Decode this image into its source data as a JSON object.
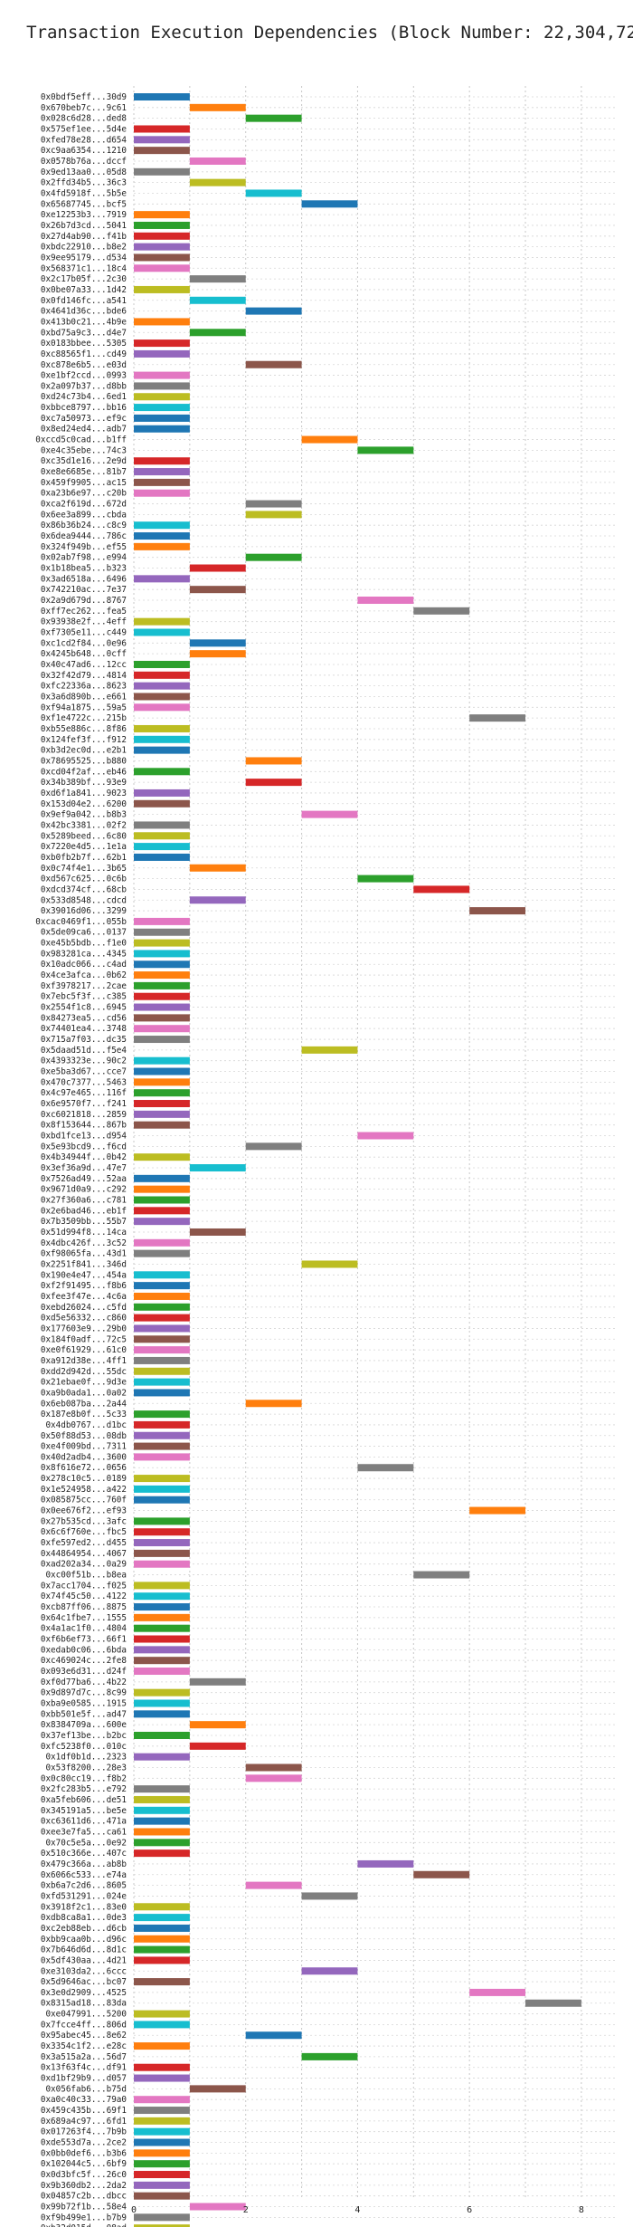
{
  "chart_data": {
    "type": "gantt",
    "title": "Transaction Execution Dependencies (Block Number: 22,304,722)",
    "xlabel": "",
    "ylabel": "",
    "xlim": [
      0,
      8.6
    ],
    "xticks": [
      0,
      2,
      4,
      6,
      8
    ],
    "grid": true,
    "legend": "none",
    "palette": [
      "#1f77b4",
      "#ff7f0e",
      "#2ca02c",
      "#d62728",
      "#9467bd",
      "#8c564b",
      "#e377c2",
      "#7f7f7f",
      "#bcbd22",
      "#17becf"
    ],
    "rows": [
      {
        "label": "0x0bdf5eff...30d9",
        "start": 0,
        "c": 0
      },
      {
        "label": "0x670beb7c...9c61",
        "start": 1,
        "c": 1
      },
      {
        "label": "0x028c6d28...ded8",
        "start": 2,
        "c": 2
      },
      {
        "label": "0x575ef1ee...5d4e",
        "start": 0,
        "c": 3
      },
      {
        "label": "0xfed78e28...d654",
        "start": 0,
        "c": 4
      },
      {
        "label": "0xc9aa6354...1210",
        "start": 0,
        "c": 5
      },
      {
        "label": "0x0578b76a...dccf",
        "start": 1,
        "c": 6
      },
      {
        "label": "0x9ed13aa0...05d8",
        "start": 0,
        "c": 7
      },
      {
        "label": "0x2ffd34b5...36c3",
        "start": 1,
        "c": 8
      },
      {
        "label": "0x4fd5918f...5b5e",
        "start": 2,
        "c": 9
      },
      {
        "label": "0x65687745...bcf5",
        "start": 3,
        "c": 0
      },
      {
        "label": "0xe12253b3...7919",
        "start": 0,
        "c": 1
      },
      {
        "label": "0x26b7d3cd...5041",
        "start": 0,
        "c": 2
      },
      {
        "label": "0x27d4ab90...f41b",
        "start": 0,
        "c": 3
      },
      {
        "label": "0xbdc22910...b8e2",
        "start": 0,
        "c": 4
      },
      {
        "label": "0x9ee95179...d534",
        "start": 0,
        "c": 5
      },
      {
        "label": "0x568371c1...18c4",
        "start": 0,
        "c": 6
      },
      {
        "label": "0x2c17b05f...2c30",
        "start": 1,
        "c": 7
      },
      {
        "label": "0x0be07a33...1d42",
        "start": 0,
        "c": 8
      },
      {
        "label": "0x0fd146fc...a541",
        "start": 1,
        "c": 9
      },
      {
        "label": "0x4641d36c...bde6",
        "start": 2,
        "c": 0
      },
      {
        "label": "0x413b0c21...4b9e",
        "start": 0,
        "c": 1
      },
      {
        "label": "0xbd75a9c3...d4e7",
        "start": 1,
        "c": 2
      },
      {
        "label": "0x0183bbee...5305",
        "start": 0,
        "c": 3
      },
      {
        "label": "0xc88565f1...cd49",
        "start": 0,
        "c": 4
      },
      {
        "label": "0xc878e6b5...e03d",
        "start": 2,
        "c": 5
      },
      {
        "label": "0xe1bf2ccd...0993",
        "start": 0,
        "c": 6
      },
      {
        "label": "0x2a097b37...d8bb",
        "start": 0,
        "c": 7
      },
      {
        "label": "0xd24c73b4...6ed1",
        "start": 0,
        "c": 8
      },
      {
        "label": "0xbbce8797...bb16",
        "start": 0,
        "c": 9
      },
      {
        "label": "0xc7a50973...ef9c",
        "start": 0,
        "c": 0
      },
      {
        "label": "0x8ed24ed4...adb7",
        "start": 0,
        "c": 0
      },
      {
        "label": "0xccd5c0cad...b1ff",
        "start": 3,
        "c": 1
      },
      {
        "label": "0xe4c35ebe...74c3",
        "start": 4,
        "c": 2
      },
      {
        "label": "0xc35d1e16...2e9d",
        "start": 0,
        "c": 3
      },
      {
        "label": "0xe8e6685e...81b7",
        "start": 0,
        "c": 4
      },
      {
        "label": "0x459f9905...ac15",
        "start": 0,
        "c": 5
      },
      {
        "label": "0xa23b6e97...c20b",
        "start": 0,
        "c": 6
      },
      {
        "label": "0xca2f619d...672d",
        "start": 2,
        "c": 7
      },
      {
        "label": "0x6ee3a899...cbda",
        "start": 2,
        "c": 8
      },
      {
        "label": "0x86b36b24...c8c9",
        "start": 0,
        "c": 9
      },
      {
        "label": "0x6dea9444...786c",
        "start": 0,
        "c": 0
      },
      {
        "label": "0x324f949b...ef55",
        "start": 0,
        "c": 1
      },
      {
        "label": "0x02ab7f98...e994",
        "start": 2,
        "c": 2
      },
      {
        "label": "0x1b18bea5...b323",
        "start": 1,
        "c": 3
      },
      {
        "label": "0x3ad6518a...6496",
        "start": 0,
        "c": 4
      },
      {
        "label": "0x742210ac...7e37",
        "start": 1,
        "c": 5
      },
      {
        "label": "0x2a9d679d...8767",
        "start": 4,
        "c": 6
      },
      {
        "label": "0xff7ec262...fea5",
        "start": 5,
        "c": 7
      },
      {
        "label": "0x93938e2f...4eff",
        "start": 0,
        "c": 8
      },
      {
        "label": "0xf7305e11...c449",
        "start": 0,
        "c": 9
      },
      {
        "label": "0xc1cd2f84...0e96",
        "start": 1,
        "c": 0
      },
      {
        "label": "0x4245b648...0cff",
        "start": 1,
        "c": 1
      },
      {
        "label": "0x40c47ad6...12cc",
        "start": 0,
        "c": 2
      },
      {
        "label": "0x32f42d79...4814",
        "start": 0,
        "c": 3
      },
      {
        "label": "0xfc22336a...8623",
        "start": 0,
        "c": 4
      },
      {
        "label": "0x3a6d890b...e661",
        "start": 0,
        "c": 5
      },
      {
        "label": "0xf94a1875...59a5",
        "start": 0,
        "c": 6
      },
      {
        "label": "0xf1e4722c...215b",
        "start": 6,
        "c": 7
      },
      {
        "label": "0xb55e886c...8f86",
        "start": 0,
        "c": 8
      },
      {
        "label": "0x124fef3f...f912",
        "start": 0,
        "c": 9
      },
      {
        "label": "0xb3d2ec0d...e2b1",
        "start": 0,
        "c": 0
      },
      {
        "label": "0x78695525...b880",
        "start": 2,
        "c": 1
      },
      {
        "label": "0xcd04f2af...eb46",
        "start": 0,
        "c": 2
      },
      {
        "label": "0x34b389bf...93e9",
        "start": 2,
        "c": 3
      },
      {
        "label": "0xd6f1a841...9023",
        "start": 0,
        "c": 4
      },
      {
        "label": "0x153d04e2...6200",
        "start": 0,
        "c": 5
      },
      {
        "label": "0x9ef9a042...b8b3",
        "start": 3,
        "c": 6
      },
      {
        "label": "0x42bc3381...02f2",
        "start": 0,
        "c": 7
      },
      {
        "label": "0x5289beed...6c80",
        "start": 0,
        "c": 8
      },
      {
        "label": "0x7220e4d5...1e1a",
        "start": 0,
        "c": 9
      },
      {
        "label": "0xb0fb2b7f...62b1",
        "start": 0,
        "c": 0
      },
      {
        "label": "0x0c74f4e1...3b65",
        "start": 1,
        "c": 1
      },
      {
        "label": "0xd567c625...0c6b",
        "start": 4,
        "c": 2
      },
      {
        "label": "0xdcd374cf...68cb",
        "start": 5,
        "c": 3
      },
      {
        "label": "0x533d8548...cdcd",
        "start": 1,
        "c": 4
      },
      {
        "label": "0x39016d06...3299",
        "start": 6,
        "c": 5
      },
      {
        "label": "0xcac0469f1...055b",
        "start": 0,
        "c": 6
      },
      {
        "label": "0x5de09ca6...0137",
        "start": 0,
        "c": 7
      },
      {
        "label": "0xe45b5bdb...f1e0",
        "start": 0,
        "c": 8
      },
      {
        "label": "0x983281ca...4345",
        "start": 0,
        "c": 9
      },
      {
        "label": "0x10adc066...c4ad",
        "start": 0,
        "c": 0
      },
      {
        "label": "0x4ce3afca...0b62",
        "start": 0,
        "c": 1
      },
      {
        "label": "0xf3978217...2cae",
        "start": 0,
        "c": 2
      },
      {
        "label": "0x7ebc5f3f...c385",
        "start": 0,
        "c": 3
      },
      {
        "label": "0x2554f1c8...6945",
        "start": 0,
        "c": 4
      },
      {
        "label": "0x84273ea5...cd56",
        "start": 0,
        "c": 5
      },
      {
        "label": "0x74401ea4...3748",
        "start": 0,
        "c": 6
      },
      {
        "label": "0x715a7f03...dc35",
        "start": 0,
        "c": 7
      },
      {
        "label": "0x5daad51d...f5e4",
        "start": 3,
        "c": 8
      },
      {
        "label": "0x4393323e...90c2",
        "start": 0,
        "c": 9
      },
      {
        "label": "0xe5ba3d67...cce7",
        "start": 0,
        "c": 0
      },
      {
        "label": "0x470c7377...5463",
        "start": 0,
        "c": 1
      },
      {
        "label": "0x4c97e465...116f",
        "start": 0,
        "c": 2
      },
      {
        "label": "0x6e9570f7...f241",
        "start": 0,
        "c": 3
      },
      {
        "label": "0xc6021818...2859",
        "start": 0,
        "c": 4
      },
      {
        "label": "0x8f153644...867b",
        "start": 0,
        "c": 5
      },
      {
        "label": "0xbd1fce13...d954",
        "start": 4,
        "c": 6
      },
      {
        "label": "0x5e93bcd9...f6cd",
        "start": 2,
        "c": 7
      },
      {
        "label": "0x4b34944f...0b42",
        "start": 0,
        "c": 8
      },
      {
        "label": "0x3ef36a9d...47e7",
        "start": 1,
        "c": 9
      },
      {
        "label": "0x7526ad49...52aa",
        "start": 0,
        "c": 0
      },
      {
        "label": "0x9671d0a9...c292",
        "start": 0,
        "c": 1
      },
      {
        "label": "0x27f360a6...c781",
        "start": 0,
        "c": 2
      },
      {
        "label": "0x2e6bad46...eb1f",
        "start": 0,
        "c": 3
      },
      {
        "label": "0x7b3509bb...55b7",
        "start": 0,
        "c": 4
      },
      {
        "label": "0x51d994f8...14ca",
        "start": 1,
        "c": 5
      },
      {
        "label": "0x4dbc426f...3c52",
        "start": 0,
        "c": 6
      },
      {
        "label": "0xf98065fa...43d1",
        "start": 0,
        "c": 7
      },
      {
        "label": "0x2251f841...346d",
        "start": 3,
        "c": 8
      },
      {
        "label": "0x190e4e47...454a",
        "start": 0,
        "c": 9
      },
      {
        "label": "0xf2f91495...f8b6",
        "start": 0,
        "c": 0
      },
      {
        "label": "0xfee3f47e...4c6a",
        "start": 0,
        "c": 1
      },
      {
        "label": "0xebd26024...c5fd",
        "start": 0,
        "c": 2
      },
      {
        "label": "0xd5e56332...c860",
        "start": 0,
        "c": 3
      },
      {
        "label": "0x177603e9...29b0",
        "start": 0,
        "c": 4
      },
      {
        "label": "0x184f0adf...72c5",
        "start": 0,
        "c": 5
      },
      {
        "label": "0xe0f61929...61c0",
        "start": 0,
        "c": 6
      },
      {
        "label": "0xa912d38e...4ff1",
        "start": 0,
        "c": 7
      },
      {
        "label": "0xdd2d942d...55dc",
        "start": 0,
        "c": 8
      },
      {
        "label": "0x21ebae0f...9d3e",
        "start": 0,
        "c": 9
      },
      {
        "label": "0xa9b0ada1...0a02",
        "start": 0,
        "c": 0
      },
      {
        "label": "0x6eb087ba...2a44",
        "start": 2,
        "c": 1
      },
      {
        "label": "0x187e8b0f...5c33",
        "start": 0,
        "c": 2
      },
      {
        "label": "0x4db0767...d1bc",
        "start": 0,
        "c": 3
      },
      {
        "label": "0x50f88d53...08db",
        "start": 0,
        "c": 4
      },
      {
        "label": "0xe4f009bd...7311",
        "start": 0,
        "c": 5
      },
      {
        "label": "0x40d2adb4...3600",
        "start": 0,
        "c": 6
      },
      {
        "label": "0x8f616e72...0656",
        "start": 4,
        "c": 7
      },
      {
        "label": "0x278c10c5...0189",
        "start": 0,
        "c": 8
      },
      {
        "label": "0x1e524958...a422",
        "start": 0,
        "c": 9
      },
      {
        "label": "0x085875cc...760f",
        "start": 0,
        "c": 0
      },
      {
        "label": "0x0ee676f2...ef93",
        "start": 6,
        "c": 1
      },
      {
        "label": "0x27b535cd...3afc",
        "start": 0,
        "c": 2
      },
      {
        "label": "0x6c6f760e...fbc5",
        "start": 0,
        "c": 3
      },
      {
        "label": "0xfe597ed2...d455",
        "start": 0,
        "c": 4
      },
      {
        "label": "0x44864954...4067",
        "start": 0,
        "c": 5
      },
      {
        "label": "0xad202a34...0a29",
        "start": 0,
        "c": 6
      },
      {
        "label": "0xc00f51b...b8ea",
        "start": 5,
        "c": 7
      },
      {
        "label": "0x7acc1704...f025",
        "start": 0,
        "c": 8
      },
      {
        "label": "0x74f45c50...4122",
        "start": 0,
        "c": 9
      },
      {
        "label": "0xcb87ff06...8875",
        "start": 0,
        "c": 0
      },
      {
        "label": "0x64c1fbe7...1555",
        "start": 0,
        "c": 1
      },
      {
        "label": "0x4a1ac1f0...4804",
        "start": 0,
        "c": 2
      },
      {
        "label": "0xf6b6ef73...66f1",
        "start": 0,
        "c": 3
      },
      {
        "label": "0xedab0c06...6bda",
        "start": 0,
        "c": 4
      },
      {
        "label": "0xc469024c...2fe8",
        "start": 0,
        "c": 5
      },
      {
        "label": "0x093e6d31...d24f",
        "start": 0,
        "c": 6
      },
      {
        "label": "0xf0d77ba6...4b22",
        "start": 1,
        "c": 7
      },
      {
        "label": "0x9d897d7c...8c99",
        "start": 0,
        "c": 8
      },
      {
        "label": "0xba9e0585...1915",
        "start": 0,
        "c": 9
      },
      {
        "label": "0xbb501e5f...ad47",
        "start": 0,
        "c": 0
      },
      {
        "label": "0x8384709a...600e",
        "start": 1,
        "c": 1
      },
      {
        "label": "0x37ef13be...b2bc",
        "start": 0,
        "c": 2
      },
      {
        "label": "0xfc5238f0...010c",
        "start": 1,
        "c": 3
      },
      {
        "label": "0x1df0b1d...2323",
        "start": 0,
        "c": 4
      },
      {
        "label": "0x53f8200...28e3",
        "start": 2,
        "c": 5
      },
      {
        "label": "0x0c80cc19...f8b2",
        "start": 2,
        "c": 6
      },
      {
        "label": "0x2fc283b5...e792",
        "start": 0,
        "c": 7
      },
      {
        "label": "0xa5feb606...de51",
        "start": 0,
        "c": 8
      },
      {
        "label": "0x345191a5...be5e",
        "start": 0,
        "c": 9
      },
      {
        "label": "0xc63611d6...471a",
        "start": 0,
        "c": 0
      },
      {
        "label": "0xee3e7fa5...ca61",
        "start": 0,
        "c": 1
      },
      {
        "label": "0x70c5e5a...0e92",
        "start": 0,
        "c": 2
      },
      {
        "label": "0x510c366e...407c",
        "start": 0,
        "c": 3
      },
      {
        "label": "0x479c366a...ab8b",
        "start": 4,
        "c": 4
      },
      {
        "label": "0x6066c533...e74a",
        "start": 5,
        "c": 5
      },
      {
        "label": "0xb6a7c2d6...8605",
        "start": 2,
        "c": 6
      },
      {
        "label": "0xfd531291...024e",
        "start": 3,
        "c": 7
      },
      {
        "label": "0x3918f2c1...83e0",
        "start": 0,
        "c": 8
      },
      {
        "label": "0xdb8ca8a1...0de3",
        "start": 0,
        "c": 9
      },
      {
        "label": "0xc2eb88eb...d6cb",
        "start": 0,
        "c": 0
      },
      {
        "label": "0xbb9caa0b...d96c",
        "start": 0,
        "c": 1
      },
      {
        "label": "0x7b646d6d...8d1c",
        "start": 0,
        "c": 2
      },
      {
        "label": "0x5df430aa...4d21",
        "start": 0,
        "c": 3
      },
      {
        "label": "0xe3103da2...6ccc",
        "start": 3,
        "c": 4
      },
      {
        "label": "0x5d9646ac...bc07",
        "start": 0,
        "c": 5
      },
      {
        "label": "0x3e0d2909...4525",
        "start": 6,
        "c": 6
      },
      {
        "label": "0x8315ad18...83da",
        "start": 7,
        "c": 7
      },
      {
        "label": "0xe047991...5200",
        "start": 0,
        "c": 8
      },
      {
        "label": "0x7fcce4ff...806d",
        "start": 0,
        "c": 9
      },
      {
        "label": "0x95abec45...8e62",
        "start": 2,
        "c": 0
      },
      {
        "label": "0x3354c1f2...e28c",
        "start": 0,
        "c": 1
      },
      {
        "label": "0x3a515a2a...56d7",
        "start": 3,
        "c": 2
      },
      {
        "label": "0x13f63f4c...df91",
        "start": 0,
        "c": 3
      },
      {
        "label": "0xd1bf29b9...d057",
        "start": 0,
        "c": 4
      },
      {
        "label": "0x056fab6...b75d",
        "start": 1,
        "c": 5
      },
      {
        "label": "0xa0c40c33...79a0",
        "start": 0,
        "c": 6
      },
      {
        "label": "0x459c435b...69f1",
        "start": 0,
        "c": 7
      },
      {
        "label": "0x689a4c97...6fd1",
        "start": 0,
        "c": 8
      },
      {
        "label": "0x017263f4...7b9b",
        "start": 0,
        "c": 9
      },
      {
        "label": "0xde553d7a...2ce2",
        "start": 0,
        "c": 0
      },
      {
        "label": "0x0bb0def6...b3b6",
        "start": 0,
        "c": 1
      },
      {
        "label": "0x102044c5...6bf9",
        "start": 0,
        "c": 2
      },
      {
        "label": "0x0d3bfc5f...26c0",
        "start": 0,
        "c": 3
      },
      {
        "label": "0x9b360db2...2da2",
        "start": 0,
        "c": 4
      },
      {
        "label": "0x04857c2b...dbcc",
        "start": 0,
        "c": 5
      },
      {
        "label": "0x99b72f1b...58e4",
        "start": 1,
        "c": 6
      },
      {
        "label": "0xf9b499e1...b7b9",
        "start": 0,
        "c": 7
      },
      {
        "label": "0xb32d015d...08ad",
        "start": 0,
        "c": 8
      },
      {
        "label": "0x2dbe7122...e68f",
        "start": 0,
        "c": 9
      },
      {
        "label": "0xf88e5cb5...07cb",
        "start": 0,
        "c": 0
      },
      {
        "label": "0x6eb0e7f9...499b",
        "start": 0,
        "c": 1
      },
      {
        "label": "0x08206ef1...417d",
        "start": 0,
        "c": 2
      },
      {
        "label": "0x2a8192c1...c572",
        "start": 0,
        "c": 3
      },
      {
        "label": "0x398eff2c...4029",
        "start": 0,
        "c": 4
      }
    ]
  }
}
